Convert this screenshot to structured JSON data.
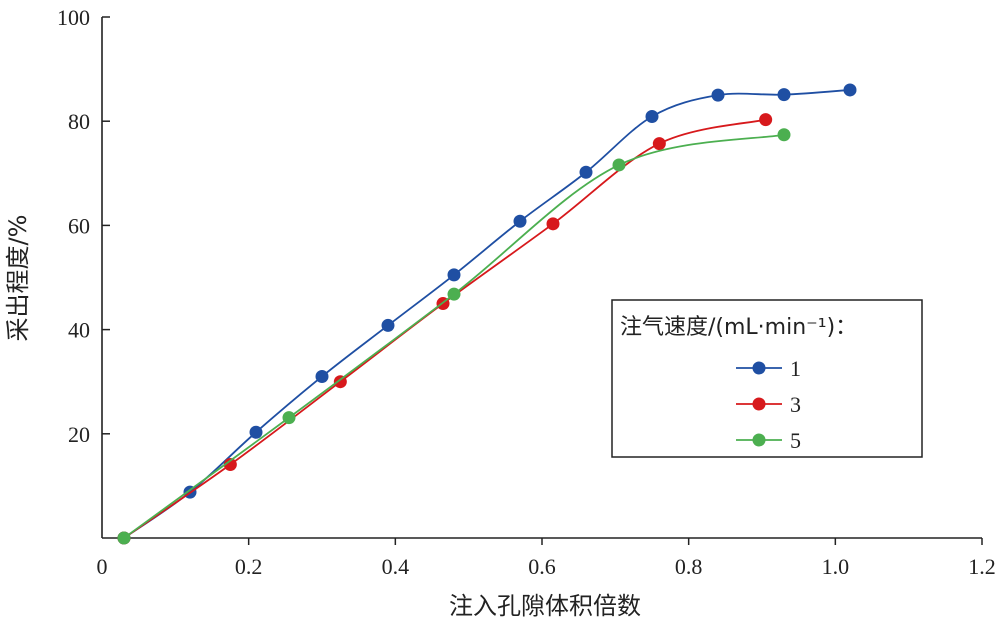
{
  "chart_data": {
    "type": "line",
    "xlabel": "注入孔隙体积倍数",
    "ylabel": "采出程度/%",
    "xlim": [
      0,
      1.2
    ],
    "ylim": [
      0,
      100
    ],
    "xticks": [
      "0",
      "0.2",
      "0.4",
      "0.6",
      "0.8",
      "1.0",
      "1.2"
    ],
    "yticks": [
      "20",
      "40",
      "60",
      "80",
      "100"
    ],
    "grid": false,
    "smooth": true,
    "legend": {
      "title": "注气速度/(mL·min⁻¹)：",
      "position": "right"
    },
    "series": [
      {
        "name": "1",
        "color": "#1f4fa3",
        "x": [
          0.03,
          0.12,
          0.21,
          0.3,
          0.39,
          0.48,
          0.57,
          0.66,
          0.75,
          0.84,
          0.93,
          1.02
        ],
        "y": [
          0,
          8.8,
          20.3,
          31.0,
          40.8,
          50.5,
          60.8,
          70.2,
          80.9,
          85.0,
          85.1,
          86.0
        ]
      },
      {
        "name": "3",
        "color": "#d7191c",
        "x": [
          0.03,
          0.175,
          0.325,
          0.465,
          0.615,
          0.76,
          0.905
        ],
        "y": [
          0,
          14.1,
          30.0,
          45.0,
          60.3,
          75.7,
          80.3
        ]
      },
      {
        "name": "5",
        "color": "#4caf50",
        "x": [
          0.03,
          0.255,
          0.48,
          0.705,
          0.93
        ],
        "y": [
          0,
          23.1,
          46.8,
          71.6,
          77.4
        ]
      }
    ]
  }
}
